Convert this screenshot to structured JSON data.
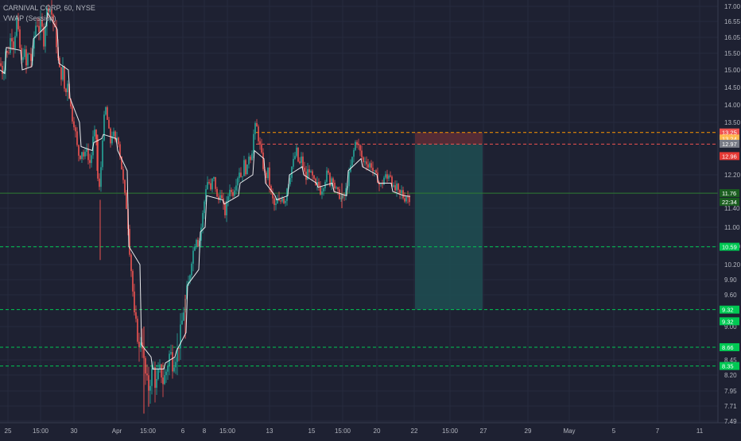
{
  "legend": {
    "symbol_line": "CARNIVAL CORP, 60, NYSE",
    "indicator_line": "VWAP (Session)"
  },
  "colors": {
    "background": "#1e2132",
    "grid": "#262b3e",
    "axis_text": "#b2b5be",
    "up": "#26a69a",
    "down": "#ef5350",
    "vwap": "#ffffff",
    "profit_zone": "#1f4e52",
    "stop_zone": "#5a2c35",
    "price_line": "#2e7d32",
    "support_line": "#00c853"
  },
  "chart_data": {
    "type": "candlestick",
    "title": "CARNIVAL CORP, 60, NYSE",
    "ylim": [
      7.35,
      17.15
    ],
    "y_ticks": [
      "17.00",
      "16.55",
      "16.05",
      "15.50",
      "15.00",
      "14.50",
      "14.00",
      "13.50",
      "12.20",
      "11.40",
      "11.00",
      "10.60",
      "10.20",
      "9.90",
      "9.60",
      "9.00",
      "8.45",
      "8.20",
      "7.95",
      "7.71",
      "7.49"
    ],
    "x_ticks": [
      "25",
      "15:00",
      "30",
      "Apr",
      "15:00",
      "6",
      "8",
      "15:00",
      "13",
      "15",
      "15:00",
      "20",
      "22",
      "15:00",
      "27",
      "29",
      "May",
      "5",
      "7",
      "11"
    ],
    "series": [
      {
        "name": "VWAP (Session)",
        "type": "line"
      }
    ],
    "candle_path": [
      [
        0,
        15.2
      ],
      [
        4,
        14.9
      ],
      [
        7,
        15.6
      ],
      [
        10,
        15.4
      ],
      [
        14,
        16.2
      ],
      [
        17,
        15.8
      ],
      [
        21,
        16.6
      ],
      [
        24,
        15.9
      ],
      [
        27,
        15.2
      ],
      [
        30,
        15.7
      ],
      [
        33,
        15.1
      ],
      [
        36,
        15.6
      ],
      [
        40,
        15.2
      ],
      [
        43,
        16.1
      ],
      [
        46,
        16.6
      ],
      [
        49,
        16.3
      ],
      [
        52,
        16.5
      ],
      [
        55,
        15.9
      ],
      [
        58,
        16.8
      ],
      [
        61,
        17.0
      ],
      [
        64,
        16.9
      ],
      [
        67,
        16.5
      ],
      [
        70,
        16.1
      ],
      [
        73,
        15.3
      ],
      [
        76,
        14.8
      ],
      [
        79,
        15.0
      ],
      [
        82,
        14.2
      ],
      [
        85,
        14.7
      ],
      [
        88,
        14.1
      ],
      [
        91,
        13.6
      ],
      [
        94,
        13.4
      ],
      [
        97,
        12.9
      ],
      [
        100,
        12.6
      ],
      [
        103,
        12.8
      ],
      [
        106,
        12.6
      ],
      [
        109,
        12.9
      ],
      [
        112,
        12.4
      ],
      [
        115,
        12.7
      ],
      [
        118,
        13.3
      ],
      [
        121,
        13.1
      ],
      [
        124,
        11.6
      ],
      [
        127,
        12.4
      ],
      [
        130,
        13.5
      ],
      [
        133,
        13.9
      ],
      [
        136,
        13.4
      ],
      [
        139,
        13.0
      ],
      [
        142,
        13.3
      ],
      [
        145,
        13.0
      ],
      [
        148,
        13.2
      ],
      [
        151,
        12.7
      ],
      [
        154,
        12.2
      ],
      [
        157,
        11.7
      ],
      [
        160,
        11.3
      ],
      [
        163,
        10.5
      ],
      [
        166,
        9.9
      ],
      [
        169,
        9.2
      ],
      [
        172,
        9.0
      ],
      [
        175,
        8.6
      ],
      [
        178,
        8.9
      ],
      [
        181,
        8.4
      ],
      [
        184,
        8.1
      ],
      [
        187,
        8.0
      ],
      [
        190,
        8.2
      ],
      [
        193,
        8.3
      ],
      [
        196,
        8.0
      ],
      [
        199,
        8.2
      ],
      [
        202,
        8.3
      ],
      [
        205,
        8.1
      ],
      [
        208,
        8.2
      ],
      [
        211,
        8.4
      ],
      [
        214,
        8.6
      ],
      [
        217,
        8.4
      ],
      [
        220,
        8.5
      ],
      [
        223,
        8.6
      ],
      [
        226,
        8.8
      ],
      [
        229,
        9.1
      ],
      [
        232,
        9.4
      ],
      [
        235,
        9.7
      ],
      [
        238,
        9.9
      ],
      [
        241,
        10.3
      ],
      [
        244,
        10.6
      ],
      [
        247,
        10.8
      ],
      [
        250,
        10.6
      ],
      [
        253,
        11.0
      ],
      [
        256,
        11.4
      ],
      [
        259,
        11.9
      ],
      [
        262,
        12.1
      ],
      [
        265,
        11.8
      ],
      [
        268,
        12.2
      ],
      [
        271,
        11.9
      ],
      [
        274,
        11.5
      ],
      [
        277,
        11.8
      ],
      [
        280,
        11.5
      ],
      [
        283,
        11.3
      ],
      [
        286,
        11.6
      ],
      [
        289,
        11.9
      ],
      [
        292,
        11.7
      ],
      [
        295,
        11.9
      ],
      [
        298,
        12.1
      ],
      [
        301,
        12.3
      ],
      [
        304,
        12.1
      ],
      [
        307,
        12.5
      ],
      [
        310,
        12.2
      ],
      [
        313,
        12.7
      ],
      [
        316,
        12.6
      ],
      [
        319,
        13.2
      ],
      [
        322,
        13.5
      ],
      [
        325,
        13.1
      ],
      [
        328,
        12.8
      ],
      [
        331,
        12.4
      ],
      [
        334,
        12.1
      ],
      [
        337,
        12.3
      ],
      [
        340,
        11.8
      ],
      [
        343,
        11.6
      ],
      [
        346,
        11.4
      ],
      [
        349,
        11.6
      ],
      [
        352,
        11.5
      ],
      [
        355,
        11.7
      ],
      [
        358,
        11.5
      ],
      [
        361,
        11.9
      ],
      [
        364,
        12.1
      ],
      [
        367,
        12.4
      ],
      [
        370,
        12.6
      ],
      [
        373,
        12.8
      ],
      [
        376,
        12.4
      ],
      [
        379,
        12.6
      ],
      [
        382,
        12.3
      ],
      [
        385,
        12.1
      ],
      [
        388,
        12.4
      ],
      [
        391,
        12.2
      ],
      [
        394,
        12.1
      ],
      [
        397,
        11.9
      ],
      [
        400,
        12.0
      ],
      [
        403,
        11.8
      ],
      [
        406,
        11.9
      ],
      [
        409,
        12.1
      ],
      [
        412,
        12.3
      ],
      [
        415,
        12.0
      ],
      [
        418,
        12.2
      ],
      [
        421,
        11.9
      ],
      [
        424,
        11.8
      ],
      [
        427,
        11.7
      ],
      [
        430,
        11.6
      ],
      [
        433,
        11.7
      ],
      [
        436,
        11.9
      ],
      [
        439,
        12.2
      ],
      [
        442,
        12.5
      ],
      [
        445,
        12.8
      ],
      [
        448,
        13.1
      ],
      [
        451,
        12.9
      ],
      [
        454,
        12.7
      ],
      [
        457,
        12.5
      ],
      [
        460,
        12.6
      ],
      [
        463,
        12.4
      ],
      [
        466,
        12.5
      ],
      [
        469,
        12.3
      ],
      [
        472,
        12.2
      ],
      [
        475,
        12.1
      ],
      [
        478,
        11.9
      ],
      [
        481,
        12.0
      ],
      [
        484,
        12.2
      ],
      [
        487,
        12.1
      ],
      [
        490,
        12.3
      ],
      [
        493,
        12.0
      ],
      [
        496,
        11.8
      ],
      [
        499,
        11.9
      ],
      [
        502,
        11.7
      ],
      [
        505,
        11.8
      ],
      [
        508,
        11.6
      ],
      [
        511,
        11.7
      ],
      [
        514,
        11.65
      ],
      [
        516,
        11.62
      ]
    ],
    "vwap_path": [
      [
        0,
        15.0
      ],
      [
        6,
        14.9
      ],
      [
        8,
        15.7
      ],
      [
        26,
        15.6
      ],
      [
        28,
        15.0
      ],
      [
        40,
        15.1
      ],
      [
        42,
        16.0
      ],
      [
        58,
        16.4
      ],
      [
        60,
        16.8
      ],
      [
        72,
        16.3
      ],
      [
        74,
        15.2
      ],
      [
        86,
        15.0
      ],
      [
        88,
        14.2
      ],
      [
        100,
        13.5
      ],
      [
        102,
        12.9
      ],
      [
        116,
        12.8
      ],
      [
        118,
        13.0
      ],
      [
        128,
        13.1
      ],
      [
        130,
        13.2
      ],
      [
        146,
        13.1
      ],
      [
        148,
        12.8
      ],
      [
        160,
        12.3
      ],
      [
        162,
        10.6
      ],
      [
        176,
        10.2
      ],
      [
        178,
        8.7
      ],
      [
        190,
        8.5
      ],
      [
        192,
        8.3
      ],
      [
        206,
        8.3
      ],
      [
        208,
        8.4
      ],
      [
        220,
        8.5
      ],
      [
        222,
        8.6
      ],
      [
        234,
        8.9
      ],
      [
        236,
        9.8
      ],
      [
        250,
        10.1
      ],
      [
        252,
        10.9
      ],
      [
        258,
        11.0
      ],
      [
        260,
        11.7
      ],
      [
        280,
        11.6
      ],
      [
        282,
        11.5
      ],
      [
        300,
        11.7
      ],
      [
        302,
        12.0
      ],
      [
        318,
        12.2
      ],
      [
        320,
        12.8
      ],
      [
        332,
        12.6
      ],
      [
        334,
        12.0
      ],
      [
        346,
        11.7
      ],
      [
        348,
        11.6
      ],
      [
        362,
        11.7
      ],
      [
        364,
        12.2
      ],
      [
        380,
        12.4
      ],
      [
        382,
        12.2
      ],
      [
        398,
        12.0
      ],
      [
        400,
        11.9
      ],
      [
        418,
        12.0
      ],
      [
        420,
        11.8
      ],
      [
        436,
        11.7
      ],
      [
        438,
        12.3
      ],
      [
        454,
        12.6
      ],
      [
        456,
        12.4
      ],
      [
        474,
        12.2
      ],
      [
        476,
        12.0
      ],
      [
        492,
        12.0
      ],
      [
        494,
        11.8
      ],
      [
        508,
        11.7
      ],
      [
        516,
        11.68
      ]
    ],
    "horizontal_levels": [
      {
        "price": 13.25,
        "style": "dashed",
        "color": "#ff9800",
        "label": "13.25",
        "label_bg": "#ef5350"
      },
      {
        "price": 12.96,
        "style": "dashed",
        "color": "#ef5350",
        "label": "12.96",
        "label_bg": "#e53935"
      },
      {
        "price": 11.76,
        "style": "solid",
        "color": "#2e7d32",
        "label": "11.76",
        "label_bg": "#1b5e20"
      },
      {
        "price": 10.59,
        "style": "dashed",
        "color": "#00c853",
        "label": "10.59",
        "label_bg": "#00c853"
      },
      {
        "price": 9.32,
        "style": "dashed",
        "color": "#00c853",
        "label": "9.32",
        "label_bg": "#00c853"
      },
      {
        "price": 8.66,
        "style": "dashed",
        "color": "#00c853",
        "label": "8.66",
        "label_bg": "#00c853"
      },
      {
        "price": 8.35,
        "style": "dashed",
        "color": "#00c853",
        "label": "8.35",
        "label_bg": "#00c853"
      }
    ],
    "position_tool": {
      "entry": 12.96,
      "stop": 13.25,
      "target": 9.32,
      "x_start": 522,
      "x_end": 607
    },
    "axis_badges": [
      {
        "price": 13.25,
        "text": "13.25",
        "bg": "#ef5350"
      },
      {
        "price": 13.1,
        "text": "13.24",
        "bg": "#ffb74d"
      },
      {
        "price": 12.97,
        "text": "12.97",
        "bg": "#787b86"
      },
      {
        "price": 12.96,
        "text": "12.96",
        "bg": "#e53935",
        "offset": 15
      },
      {
        "price": 11.76,
        "text": "11.76",
        "bg": "#1b5e20"
      },
      {
        "price": 11.55,
        "text": "22:34",
        "bg": "#1b5e20"
      },
      {
        "price": 10.59,
        "text": "10.59",
        "bg": "#00c853"
      },
      {
        "price": 9.32,
        "text": "9.32",
        "bg": "#00c853"
      },
      {
        "price": 9.1,
        "text": "9.32",
        "bg": "#00c853"
      },
      {
        "price": 8.66,
        "text": "8.66",
        "bg": "#00c853"
      },
      {
        "price": 8.35,
        "text": "8.35",
        "bg": "#00c853"
      }
    ]
  }
}
